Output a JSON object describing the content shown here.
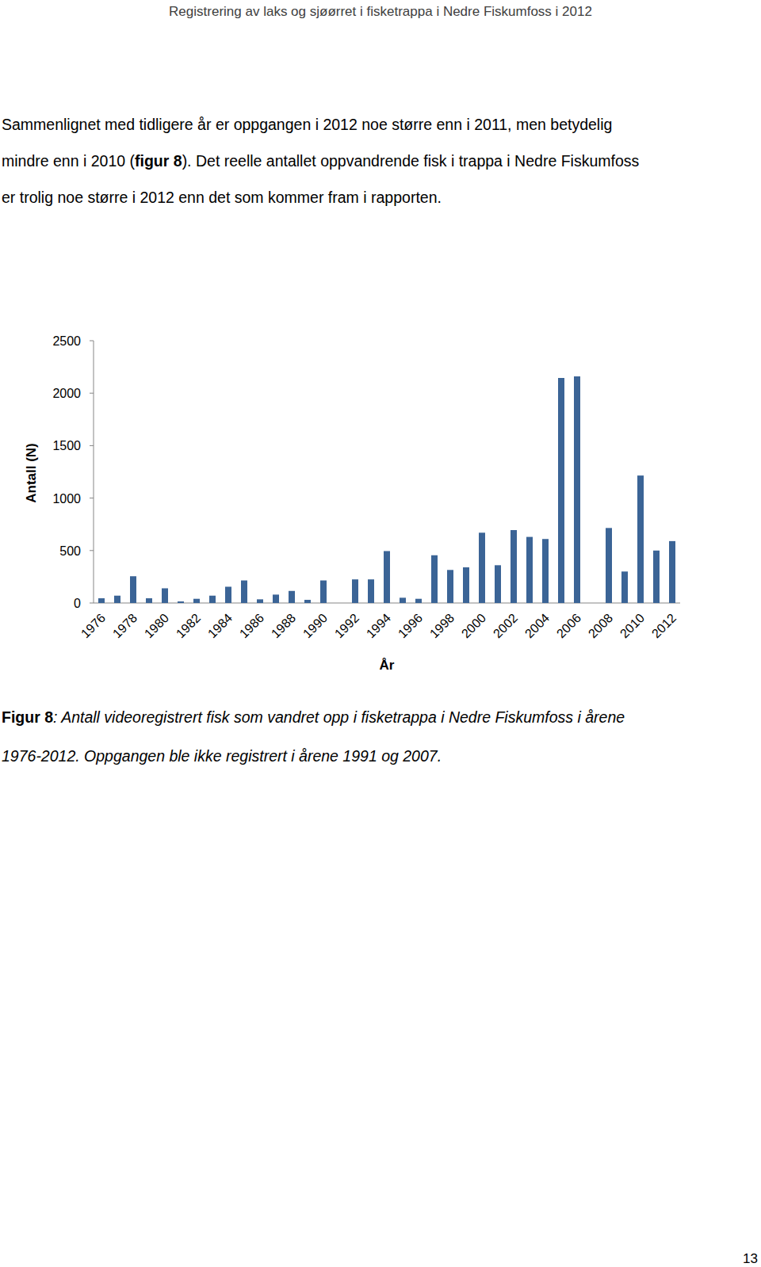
{
  "header": "Registrering av laks og sjøørret i fisketrappa i Nedre Fiskumfoss i 2012",
  "paragraph": [
    [
      {
        "text": "Sammenlignet med tidligere år er oppgangen i 2012 noe større enn i 2011, men betydelig",
        "bold": false
      }
    ],
    [
      {
        "text": "mindre enn i 2010 (",
        "bold": false
      },
      {
        "text": "figur 8",
        "bold": true
      },
      {
        "text": "). Det reelle antallet oppvandrende fisk i trappa i Nedre Fiskumfoss",
        "bold": false
      }
    ],
    [
      {
        "text": "er trolig noe større i 2012 enn det som kommer fram i rapporten.",
        "bold": false
      }
    ]
  ],
  "chart_data": {
    "type": "bar",
    "x_label": "År",
    "y_label": "Antall (N)",
    "categories": [
      "1976",
      null,
      "1978",
      null,
      "1980",
      null,
      "1982",
      null,
      "1984",
      null,
      "1986",
      null,
      "1988",
      null,
      "1990",
      null,
      "1992",
      null,
      "1994",
      null,
      "1996",
      null,
      "1998",
      null,
      "2000",
      null,
      "2002",
      null,
      "2004",
      null,
      "2006",
      null,
      "2008",
      null,
      "2010",
      null,
      "2012"
    ],
    "values": [
      45,
      70,
      255,
      45,
      140,
      15,
      40,
      70,
      155,
      215,
      35,
      80,
      115,
      30,
      215,
      null,
      225,
      225,
      495,
      50,
      40,
      455,
      315,
      340,
      670,
      360,
      695,
      630,
      610,
      2145,
      2160,
      null,
      715,
      300,
      1215,
      500,
      590
    ],
    "color": "#3b6496",
    "ylim": [
      0,
      2500
    ],
    "yticks": [
      0,
      500,
      1000,
      1500,
      2000,
      2500
    ],
    "grid": false
  },
  "caption": [
    [
      {
        "text": "Figur 8",
        "bold": true,
        "italic": false
      },
      {
        "text": ": Antall videoregistrert fisk som vandret opp i fisketrappa i Nedre Fiskumfoss i årene",
        "bold": false,
        "italic": true
      }
    ],
    [
      {
        "text": "1976-2012. Oppgangen ble ikke registrert i årene 1991 og 2007.",
        "bold": false,
        "italic": true
      }
    ]
  ],
  "page_number": "13"
}
